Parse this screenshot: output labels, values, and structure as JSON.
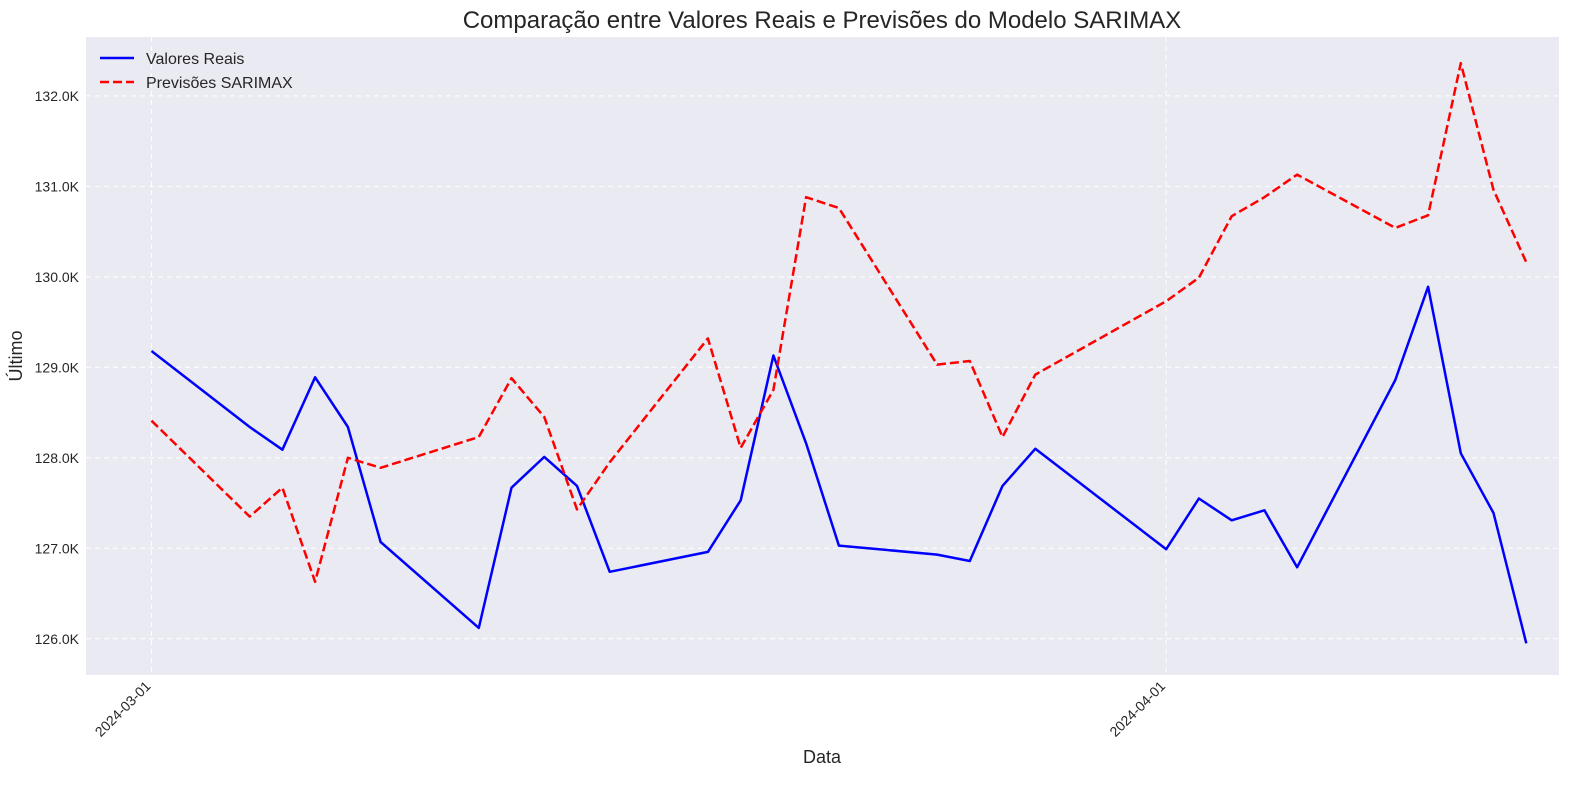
{
  "chart_data": {
    "type": "line",
    "title": "Comparação entre Valores Reais e Previsões do Modelo SARIMAX",
    "xlabel": "Data",
    "ylabel": "Último",
    "ylim": [
      125600,
      132650
    ],
    "yticks": [
      {
        "value": 126000,
        "label": "126.0K"
      },
      {
        "value": 127000,
        "label": "127.0K"
      },
      {
        "value": 128000,
        "label": "128.0K"
      },
      {
        "value": 129000,
        "label": "129.0K"
      },
      {
        "value": 130000,
        "label": "130.0K"
      },
      {
        "value": 131000,
        "label": "131.0K"
      },
      {
        "value": 132000,
        "label": "132.0K"
      }
    ],
    "xlim": [
      "2024-02-28",
      "2024-04-13"
    ],
    "xticks": [
      {
        "value": "2024-03-01",
        "label": "2024-03-01"
      },
      {
        "value": "2024-04-01",
        "label": "2024-04-01"
      }
    ],
    "grid": true,
    "legend": "top-left",
    "series": [
      {
        "name": "Valores Reais",
        "color": "#0000ff",
        "style": "solid",
        "points": [
          {
            "x": "2024-03-01",
            "y": 129180
          },
          {
            "x": "2024-03-04",
            "y": 128340
          },
          {
            "x": "2024-03-05",
            "y": 128090
          },
          {
            "x": "2024-03-06",
            "y": 128890
          },
          {
            "x": "2024-03-07",
            "y": 128340
          },
          {
            "x": "2024-03-08",
            "y": 127070
          },
          {
            "x": "2024-03-11",
            "y": 126120
          },
          {
            "x": "2024-03-12",
            "y": 127670
          },
          {
            "x": "2024-03-13",
            "y": 128010
          },
          {
            "x": "2024-03-14",
            "y": 127690
          },
          {
            "x": "2024-03-15",
            "y": 126740
          },
          {
            "x": "2024-03-18",
            "y": 126960
          },
          {
            "x": "2024-03-19",
            "y": 127530
          },
          {
            "x": "2024-03-20",
            "y": 129130
          },
          {
            "x": "2024-03-21",
            "y": 128160
          },
          {
            "x": "2024-03-22",
            "y": 127030
          },
          {
            "x": "2024-03-25",
            "y": 126930
          },
          {
            "x": "2024-03-26",
            "y": 126860
          },
          {
            "x": "2024-03-27",
            "y": 127690
          },
          {
            "x": "2024-03-28",
            "y": 128100
          },
          {
            "x": "2024-04-01",
            "y": 126990
          },
          {
            "x": "2024-04-02",
            "y": 127550
          },
          {
            "x": "2024-04-03",
            "y": 127310
          },
          {
            "x": "2024-04-04",
            "y": 127420
          },
          {
            "x": "2024-04-05",
            "y": 126790
          },
          {
            "x": "2024-04-08",
            "y": 128860
          },
          {
            "x": "2024-04-09",
            "y": 129890
          },
          {
            "x": "2024-04-10",
            "y": 128050
          },
          {
            "x": "2024-04-11",
            "y": 127390
          },
          {
            "x": "2024-04-12",
            "y": 125950
          }
        ]
      },
      {
        "name": "Previsões SARIMAX",
        "color": "#ff0000",
        "style": "dashed",
        "points": [
          {
            "x": "2024-03-01",
            "y": 128410
          },
          {
            "x": "2024-03-04",
            "y": 127350
          },
          {
            "x": "2024-03-05",
            "y": 127670
          },
          {
            "x": "2024-03-06",
            "y": 126630
          },
          {
            "x": "2024-03-07",
            "y": 128000
          },
          {
            "x": "2024-03-08",
            "y": 127890
          },
          {
            "x": "2024-03-11",
            "y": 128230
          },
          {
            "x": "2024-03-12",
            "y": 128880
          },
          {
            "x": "2024-03-13",
            "y": 128450
          },
          {
            "x": "2024-03-14",
            "y": 127430
          },
          {
            "x": "2024-03-15",
            "y": 127950
          },
          {
            "x": "2024-03-18",
            "y": 129320
          },
          {
            "x": "2024-03-19",
            "y": 128110
          },
          {
            "x": "2024-03-20",
            "y": 128750
          },
          {
            "x": "2024-03-21",
            "y": 130880
          },
          {
            "x": "2024-03-22",
            "y": 130760
          },
          {
            "x": "2024-03-25",
            "y": 129030
          },
          {
            "x": "2024-03-26",
            "y": 129070
          },
          {
            "x": "2024-03-27",
            "y": 128230
          },
          {
            "x": "2024-03-28",
            "y": 128920
          },
          {
            "x": "2024-04-01",
            "y": 129730
          },
          {
            "x": "2024-04-02",
            "y": 129990
          },
          {
            "x": "2024-04-03",
            "y": 130670
          },
          {
            "x": "2024-04-04",
            "y": 130880
          },
          {
            "x": "2024-04-05",
            "y": 131130
          },
          {
            "x": "2024-04-08",
            "y": 130540
          },
          {
            "x": "2024-04-09",
            "y": 130680
          },
          {
            "x": "2024-04-10",
            "y": 132360
          },
          {
            "x": "2024-04-11",
            "y": 130960
          },
          {
            "x": "2024-04-12",
            "y": 130160
          }
        ]
      }
    ]
  }
}
